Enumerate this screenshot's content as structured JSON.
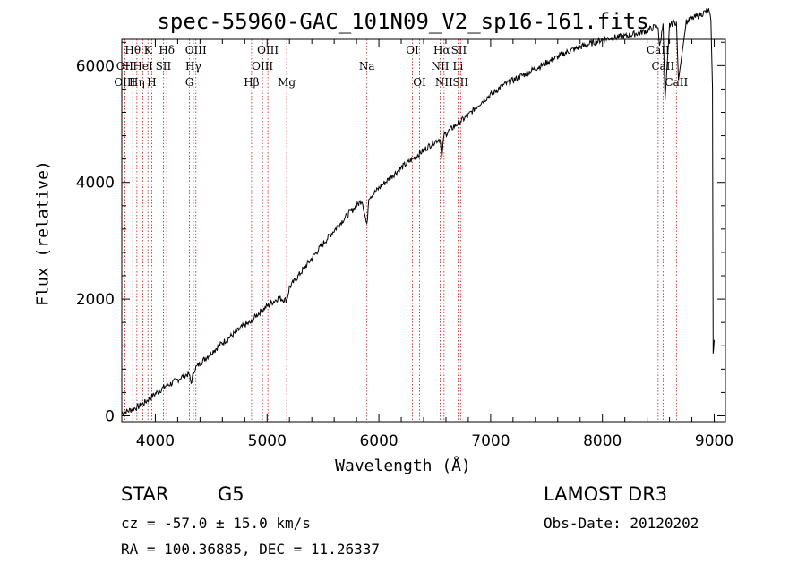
{
  "chart_data": {
    "type": "line",
    "title": "spec-55960-GAC_101N09_V2_sp16-161.fits",
    "xlabel": "Wavelength (Å)",
    "ylabel": "Flux (relative)",
    "xlim": [
      3700,
      9100
    ],
    "ylim": [
      -100,
      6450
    ],
    "xticks": [
      4000,
      5000,
      6000,
      7000,
      8000,
      9000
    ],
    "yticks": [
      0,
      2000,
      4000,
      6000
    ],
    "series": [
      {
        "name": "flux",
        "x": [
          3700,
          3750,
          3800,
          3850,
          3900,
          3950,
          4000,
          4050,
          4100,
          4150,
          4200,
          4250,
          4300,
          4320,
          4350,
          4400,
          4500,
          4600,
          4700,
          4800,
          4860,
          4900,
          5000,
          5100,
          5175,
          5200,
          5300,
          5400,
          5500,
          5600,
          5700,
          5800,
          5850,
          5893,
          5910,
          5950,
          6000,
          6100,
          6200,
          6300,
          6400,
          6500,
          6550,
          6563,
          6580,
          6650,
          6700,
          6800,
          6900,
          7000,
          7100,
          7200,
          7300,
          7400,
          7500,
          7600,
          7700,
          7800,
          7900,
          8000,
          8100,
          8200,
          8300,
          8400,
          8450,
          8498,
          8510,
          8542,
          8560,
          8600,
          8662,
          8680,
          8750,
          8800,
          8850,
          8900,
          8950,
          8970,
          8985,
          8990,
          9000
        ],
        "y": [
          50,
          80,
          120,
          160,
          220,
          300,
          380,
          450,
          520,
          560,
          620,
          680,
          720,
          560,
          800,
          900,
          1080,
          1250,
          1400,
          1560,
          1600,
          1720,
          1880,
          2020,
          1980,
          2200,
          2450,
          2700,
          2950,
          3180,
          3400,
          3600,
          3700,
          3250,
          3750,
          3800,
          3900,
          4080,
          4250,
          4400,
          4550,
          4700,
          4750,
          4380,
          4800,
          4920,
          5000,
          5150,
          5350,
          5500,
          5650,
          5750,
          5850,
          5950,
          6050,
          6150,
          6250,
          6320,
          6380,
          6450,
          6480,
          6500,
          6550,
          6600,
          6650,
          6680,
          6300,
          6720,
          5400,
          6700,
          6750,
          5750,
          6750,
          6800,
          6850,
          6900,
          6950,
          6780,
          5600,
          1100,
          1300
        ]
      }
    ],
    "lines": [
      {
        "label": "Hθ",
        "x": 3798,
        "row": 0
      },
      {
        "label": "OII",
        "x": 3727,
        "row": 1
      },
      {
        "label": "OIII",
        "x": 3727,
        "row": 2
      },
      {
        "label": "Hη",
        "x": 3835,
        "row": 2
      },
      {
        "label": "HeI",
        "x": 3889,
        "row": 1
      },
      {
        "label": "K",
        "x": 3934,
        "row": 0
      },
      {
        "label": "SII",
        "x": 4072,
        "row": 1
      },
      {
        "label": "H",
        "x": 3968,
        "row": 2
      },
      {
        "label": "Hδ",
        "x": 4102,
        "row": 0
      },
      {
        "label": "OIII",
        "x": 4363,
        "row": 0
      },
      {
        "label": "Hγ",
        "x": 4340,
        "row": 1
      },
      {
        "label": "G",
        "x": 4305,
        "row": 2
      },
      {
        "label": "Hβ",
        "x": 4861,
        "row": 2
      },
      {
        "label": "OIII",
        "x": 4959,
        "row": 1
      },
      {
        "label": "OIII",
        "x": 5007,
        "row": 0
      },
      {
        "label": "Mg",
        "x": 5175,
        "row": 2
      },
      {
        "label": "Na",
        "x": 5893,
        "row": 1
      },
      {
        "label": "OI",
        "x": 6300,
        "row": 0
      },
      {
        "label": "OI",
        "x": 6364,
        "row": 2
      },
      {
        "label": "NII",
        "x": 6548,
        "row": 1
      },
      {
        "label": "Hα",
        "x": 6563,
        "row": 0
      },
      {
        "label": "NII",
        "x": 6583,
        "row": 2
      },
      {
        "label": "SII",
        "x": 6716,
        "row": 0
      },
      {
        "label": "Li",
        "x": 6708,
        "row": 1
      },
      {
        "label": "SII",
        "x": 6731,
        "row": 2
      },
      {
        "label": "CaII",
        "x": 8498,
        "row": 0
      },
      {
        "label": "CaII",
        "x": 8542,
        "row": 1
      },
      {
        "label": "CaII",
        "x": 8662,
        "row": 2
      }
    ]
  },
  "info": {
    "class": "STAR",
    "subclass": "G5",
    "survey": "LAMOST DR3",
    "cz": "cz = -57.0 ± 15.0 km/s",
    "obs_date": "Obs-Date: 20120202",
    "radec": "RA = 100.36885, DEC =  11.26337"
  },
  "colors": {
    "line": "#000000",
    "marker": "#b22222"
  }
}
